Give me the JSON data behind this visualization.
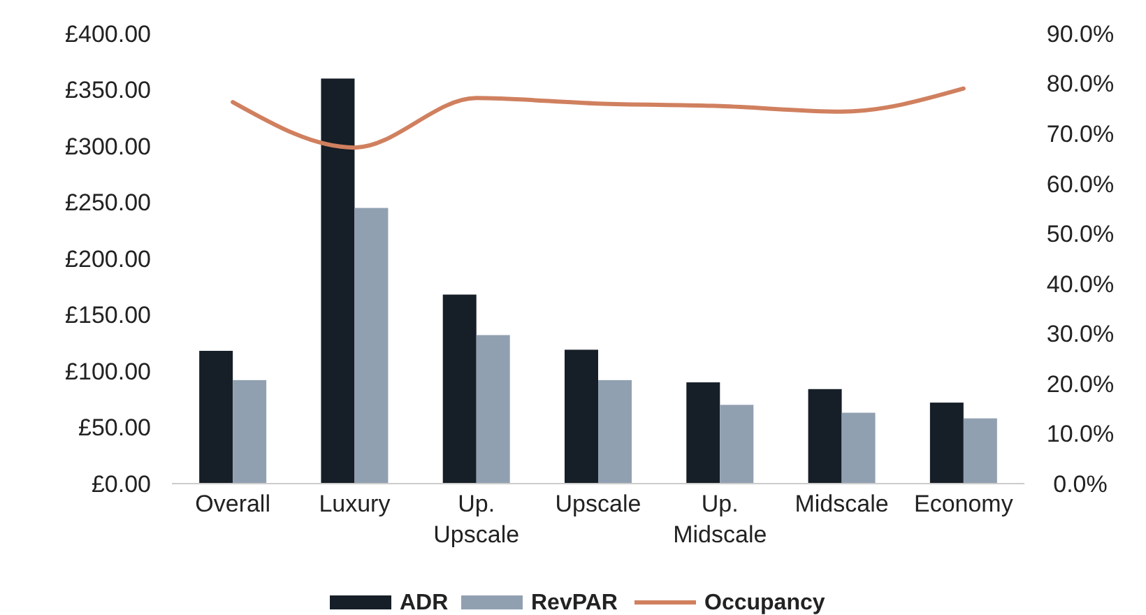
{
  "chart_data": {
    "type": "bar",
    "categories": [
      "Overall",
      "Luxury",
      "Up. Upscale",
      "Upscale",
      "Up. Midscale",
      "Midscale",
      "Economy"
    ],
    "series": [
      {
        "name": "ADR",
        "color": "#161e27",
        "values": [
          118,
          360,
          168,
          119,
          90,
          84,
          72
        ]
      },
      {
        "name": "RevPAR",
        "color": "#91a0b1",
        "values": [
          92,
          245,
          132,
          92,
          70,
          63,
          58
        ]
      },
      {
        "name": "Occupancy",
        "type": "line",
        "axis": "y2",
        "color": "#d0805f",
        "values": [
          76.3,
          67.2,
          77.1,
          76.0,
          75.5,
          74.4,
          79.0
        ]
      }
    ],
    "ylim": [
      0,
      400
    ],
    "yticks": [
      {
        "value": 0,
        "label": "£0.00"
      },
      {
        "value": 50,
        "label": "£50.00"
      },
      {
        "value": 100,
        "label": "£100.00"
      },
      {
        "value": 150,
        "label": "£150.00"
      },
      {
        "value": 200,
        "label": "£200.00"
      },
      {
        "value": 250,
        "label": "£250.00"
      },
      {
        "value": 300,
        "label": "£300.00"
      },
      {
        "value": 350,
        "label": "£350.00"
      },
      {
        "value": 400,
        "label": "£400.00"
      }
    ],
    "y2lim": [
      0,
      90
    ],
    "y2ticks": [
      {
        "value": 0,
        "label": "0.0%"
      },
      {
        "value": 10,
        "label": "10.0%"
      },
      {
        "value": 20,
        "label": "20.0%"
      },
      {
        "value": 30,
        "label": "30.0%"
      },
      {
        "value": 40,
        "label": "40.0%"
      },
      {
        "value": 50,
        "label": "50.0%"
      },
      {
        "value": 60,
        "label": "60.0%"
      },
      {
        "value": 70,
        "label": "70.0%"
      },
      {
        "value": 80,
        "label": "80.0%"
      },
      {
        "value": 90,
        "label": "90.0%"
      }
    ],
    "legend": "bottom",
    "grid": false,
    "marker": "none",
    "line_style": "solid"
  }
}
